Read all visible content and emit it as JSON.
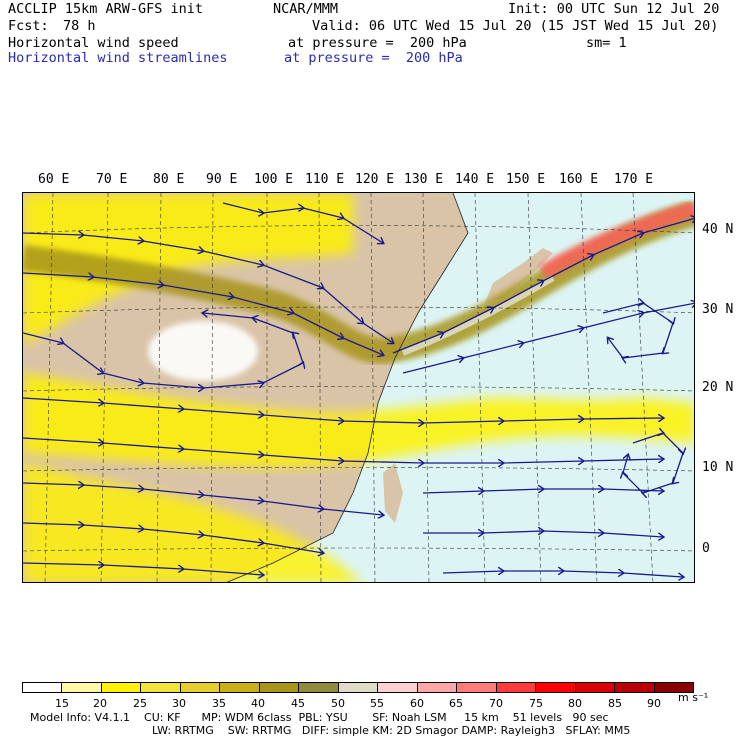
{
  "header": {
    "model": "ACCLIP 15km ARW-GFS init",
    "org": "NCAR/MMM",
    "init": "Init: 00 UTC Sun 12 Jul 20",
    "fcst_label": "Fcst:",
    "fcst_value": "78 h",
    "valid": "Valid: 06 UTC Wed 15 Jul 20 (15 JST Wed 15 Jul 20)",
    "field1_name": "Horizontal wind speed",
    "field1_level": "at pressure =  200 hPa",
    "field1_sm": "sm= 1",
    "field2_name": "Horizontal wind streamlines",
    "field2_level": "at pressure =  200 hPa"
  },
  "lon_labels": [
    "60 E",
    "70 E",
    "80 E",
    "90 E",
    "100 E",
    "110 E",
    "120 E",
    "130 E",
    "140 E",
    "150 E",
    "160 E",
    "170 E"
  ],
  "lat_labels": [
    "40 N",
    "30 N",
    "20 N",
    "10 N",
    "0"
  ],
  "colorbar": {
    "ticks": [
      "15",
      "20",
      "25",
      "30",
      "35",
      "40",
      "45",
      "50",
      "55",
      "60",
      "65",
      "70",
      "75",
      "80",
      "85",
      "90"
    ],
    "unit": "m s⁻¹",
    "colors": [
      "#ffffff",
      "#fff9a8",
      "#fff200",
      "#f2e23a",
      "#e6cf2a",
      "#c9b015",
      "#a8951a",
      "#8f8a3e",
      "#dedcc4",
      "#ffd0d0",
      "#ffa8a8",
      "#ff7a7a",
      "#ff3a3a",
      "#ff0000",
      "#dd0000",
      "#bb0000",
      "#8a0000"
    ]
  },
  "footer": {
    "line1": "Model Info: V4.1.1    CU: KF      MP: WDM 6class  PBL: YSU       SF: Noah LSM     15 km    51 levels   90 sec",
    "line2": "LW: RRTMG    SW: RRTMG   DIFF: simple KM: 2D Smagor DAMP: Rayleigh3   SFLAY: MM5"
  },
  "map_colors": {
    "ocean_calm": "#dcf4f4",
    "land": "#d9c4a8",
    "yellow": "#fff200",
    "jet_core": "#a8951a",
    "streamline": "#1a1a8a",
    "max_wind": "#ff5a5a"
  }
}
